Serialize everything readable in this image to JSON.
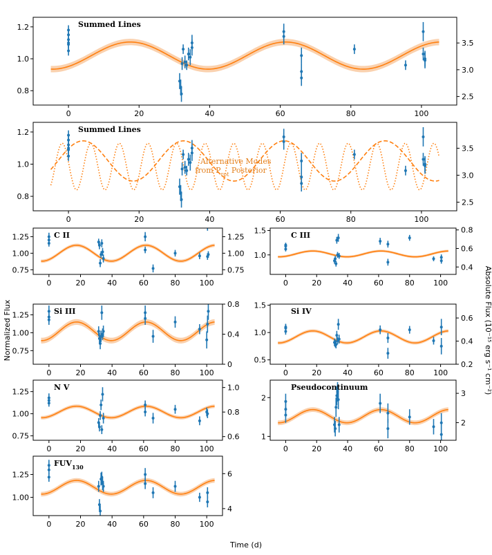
{
  "figure": {
    "xlabel": "Time (d)",
    "ylabel_left": "Normalized Flux",
    "ylabel_right": "Absolute Flux (10⁻¹⁵ erg s⁻¹ cm⁻²)",
    "colors": {
      "data": "#1f77b4",
      "model": "#ff7f0e",
      "band": "#f9c9a0",
      "annotation": "#e37f1b"
    }
  },
  "annotation": {
    "line1": "Alternative Modes",
    "line2": "from P",
    "sub": "rot",
    "line3": " Posterior"
  },
  "chart_data": [
    {
      "id": "summed",
      "type": "scatter",
      "title": "Summed Lines",
      "x": [
        0,
        0,
        0,
        0,
        0,
        0,
        31.5,
        31.8,
        32,
        32.2,
        32.5,
        33,
        33.5,
        34,
        34.5,
        35,
        35,
        61,
        61,
        66,
        66,
        66,
        81,
        95.5,
        100.5,
        100.5,
        101,
        101
      ],
      "y": [
        1.15,
        1.1,
        1.18,
        1.12,
        1.05,
        1.09,
        0.86,
        0.82,
        0.78,
        0.97,
        1.06,
        0.98,
        0.96,
        1.03,
        1.01,
        1.07,
        1.1,
        1.17,
        1.14,
        0.92,
        1.02,
        0.88,
        1.06,
        0.96,
        1.17,
        1.03,
        1.0,
        0.99
      ],
      "yerr": [
        0.03,
        0.03,
        0.03,
        0.03,
        0.03,
        0.03,
        0.05,
        0.05,
        0.05,
        0.04,
        0.03,
        0.04,
        0.03,
        0.04,
        0.05,
        0.05,
        0.05,
        0.05,
        0.05,
        0.05,
        0.05,
        0.05,
        0.03,
        0.03,
        0.06,
        0.04,
        0.05,
        0.05
      ],
      "model": {
        "mean": 1.02,
        "amp": 0.085,
        "period": 44,
        "phase": 6.5,
        "band": 0.02
      },
      "xlim": [
        -10,
        110
      ],
      "ylim": [
        0.71,
        1.26
      ],
      "xticks": [
        0,
        20,
        40,
        60,
        80,
        100
      ],
      "yticks": [
        0.8,
        1.0,
        1.2
      ],
      "yticklabels": [
        "0.8",
        "1.0",
        "1.2"
      ],
      "rticks": [
        {
          "v": 2.5,
          "label": "2.5"
        },
        {
          "v": 3.0,
          "label": "3.0"
        },
        {
          "v": 3.5,
          "label": "3.5"
        }
      ],
      "rlim": [
        2.34,
        3.98
      ]
    },
    {
      "id": "modes",
      "type": "scatter",
      "title": "Summed Lines",
      "x": [
        0,
        0,
        0,
        0,
        0,
        0,
        31.5,
        31.8,
        32,
        32.2,
        32.5,
        33,
        33.5,
        34,
        34.5,
        35,
        35,
        61,
        61,
        66,
        66,
        66,
        81,
        95.5,
        100.5,
        100.5,
        101,
        101
      ],
      "y": [
        1.15,
        1.1,
        1.18,
        1.12,
        1.05,
        1.09,
        0.86,
        0.82,
        0.78,
        0.97,
        1.06,
        0.98,
        0.96,
        1.03,
        1.01,
        1.07,
        1.1,
        1.17,
        1.14,
        0.92,
        1.02,
        0.88,
        1.06,
        0.96,
        1.17,
        1.03,
        1.0,
        0.99
      ],
      "yerr": [
        0.03,
        0.03,
        0.03,
        0.03,
        0.03,
        0.03,
        0.05,
        0.05,
        0.05,
        0.04,
        0.03,
        0.04,
        0.03,
        0.04,
        0.05,
        0.05,
        0.05,
        0.05,
        0.05,
        0.05,
        0.05,
        0.05,
        0.03,
        0.03,
        0.06,
        0.04,
        0.05,
        0.05
      ],
      "modes": [
        {
          "style": "dashed",
          "mean": 1.02,
          "amp": 0.125,
          "period": 28.5,
          "phase": -3
        },
        {
          "style": "dotted",
          "mean": 0.985,
          "amp": 0.145,
          "period": 8.1,
          "phase": -3.8
        }
      ],
      "xlim": [
        -10,
        110
      ],
      "ylim": [
        0.71,
        1.26
      ],
      "xticks": [
        0,
        20,
        40,
        60,
        80,
        100
      ],
      "yticks": [
        0.8,
        1.0,
        1.2
      ],
      "yticklabels": [
        "0.8",
        "1.0",
        "1.2"
      ],
      "rticks": [
        {
          "v": 2.5,
          "label": "2.5"
        },
        {
          "v": 3.0,
          "label": "3.0"
        },
        {
          "v": 3.5,
          "label": "3.5"
        }
      ],
      "rlim": [
        2.34,
        3.98
      ]
    },
    {
      "id": "c2",
      "type": "scatter",
      "title": "C II",
      "x": [
        0,
        0,
        0,
        31.5,
        32,
        32.5,
        33,
        33.5,
        34,
        34.5,
        61,
        61,
        66,
        80,
        95.5,
        100.5,
        100.5,
        101
      ],
      "y": [
        1.2,
        1.15,
        1.25,
        1.17,
        1.12,
        0.85,
        0.98,
        1.15,
        1.02,
        0.92,
        1.05,
        1.25,
        0.77,
        1.0,
        0.96,
        0.95,
        1.42,
        0.98
      ],
      "yerr": [
        0.05,
        0.05,
        0.06,
        0.05,
        0.06,
        0.06,
        0.05,
        0.06,
        0.06,
        0.06,
        0.05,
        0.07,
        0.06,
        0.05,
        0.05,
        0.05,
        0.08,
        0.05
      ],
      "model": {
        "mean": 1.0,
        "amp": 0.12,
        "period": 44,
        "phase": 6.5,
        "band": 0.025
      },
      "xlim": [
        -10,
        110
      ],
      "ylim": [
        0.68,
        1.38
      ],
      "xticks": [
        0,
        20,
        40,
        60,
        80,
        100
      ],
      "yticks": [
        0.75,
        1.0,
        1.25
      ],
      "yticklabels": [
        "0.75",
        "1.00",
        "1.25"
      ],
      "rticks": [
        {
          "v": 0.75,
          "label": "0.75"
        },
        {
          "v": 1.0,
          "label": "1.00"
        },
        {
          "v": 1.25,
          "label": "1.25"
        }
      ],
      "rlim": [
        0.68,
        1.38
      ]
    },
    {
      "id": "c3",
      "type": "scatter",
      "title": "C III",
      "x": [
        0,
        0,
        0,
        31.5,
        32,
        32.5,
        33,
        33.5,
        34,
        34.5,
        61,
        66,
        66,
        80,
        95.5,
        100.5,
        100.5
      ],
      "y": [
        1.2,
        1.12,
        1.18,
        0.88,
        0.92,
        0.82,
        1.3,
        1.0,
        1.35,
        0.98,
        1.28,
        1.22,
        0.85,
        1.35,
        0.92,
        0.95,
        0.88
      ],
      "yerr": [
        0.05,
        0.05,
        0.06,
        0.06,
        0.06,
        0.06,
        0.07,
        0.06,
        0.08,
        0.06,
        0.07,
        0.07,
        0.07,
        0.06,
        0.05,
        0.06,
        0.06
      ],
      "model": {
        "mean": 1.02,
        "amp": 0.06,
        "period": 44,
        "phase": 6.5,
        "band": 0.025
      },
      "xlim": [
        -10,
        110
      ],
      "ylim": [
        0.6,
        1.55
      ],
      "xticks": [
        0,
        20,
        40,
        60,
        80,
        100
      ],
      "yticks": [
        1.0,
        1.5
      ],
      "yticklabels": [
        "1.0",
        "1.5"
      ],
      "rticks": [
        {
          "v": 0.4,
          "label": "0.4"
        },
        {
          "v": 0.6,
          "label": "0.6"
        },
        {
          "v": 0.8,
          "label": "0.8"
        }
      ],
      "rlim": [
        0.32,
        0.82
      ]
    },
    {
      "id": "si3",
      "type": "scatter",
      "title": "Si III",
      "x": [
        0,
        0,
        0,
        31.5,
        32,
        32.5,
        33,
        33.5,
        34,
        34.5,
        61,
        61,
        66,
        80,
        95.5,
        100,
        100.5,
        101
      ],
      "y": [
        1.22,
        1.18,
        1.3,
        1.02,
        0.92,
        0.85,
        0.95,
        1.28,
        0.98,
        1.02,
        1.28,
        1.2,
        0.95,
        1.15,
        1.05,
        0.9,
        1.12,
        1.3
      ],
      "yerr": [
        0.07,
        0.07,
        0.08,
        0.07,
        0.08,
        0.08,
        0.08,
        0.1,
        0.08,
        0.08,
        0.1,
        0.09,
        0.09,
        0.08,
        0.07,
        0.12,
        0.12,
        0.12
      ],
      "model": {
        "mean": 1.02,
        "amp": 0.13,
        "period": 44,
        "phase": 6.5,
        "band": 0.04
      },
      "xlim": [
        -10,
        110
      ],
      "ylim": [
        0.56,
        1.4
      ],
      "xticks": [
        0,
        20,
        40,
        60,
        80,
        100
      ],
      "yticks": [
        0.75,
        1.0,
        1.25
      ],
      "yticklabels": [
        "0.75",
        "1.00",
        "1.25"
      ],
      "rticks": [
        {
          "v": 0.0,
          "label": "0"
        },
        {
          "v": 0.4,
          "label": "0.4"
        },
        {
          "v": 0.8,
          "label": "0.8"
        }
      ],
      "rlim": [
        0.0,
        0.8
      ]
    },
    {
      "id": "si4",
      "type": "scatter",
      "title": "Si IV",
      "x": [
        0,
        0,
        0,
        31.5,
        32,
        32.5,
        33,
        33.5,
        34,
        34.5,
        61,
        66,
        66,
        80,
        95.5,
        100.5,
        100.5
      ],
      "y": [
        1.1,
        1.02,
        1.08,
        0.82,
        0.8,
        0.78,
        0.95,
        0.85,
        1.15,
        0.88,
        1.05,
        0.62,
        0.9,
        1.05,
        0.85,
        0.75,
        1.1
      ],
      "yerr": [
        0.06,
        0.06,
        0.07,
        0.07,
        0.07,
        0.07,
        0.08,
        0.07,
        0.1,
        0.08,
        0.08,
        0.1,
        0.09,
        0.07,
        0.07,
        0.15,
        0.15
      ],
      "model": {
        "mean": 0.92,
        "amp": 0.11,
        "period": 44,
        "phase": 6.5,
        "band": 0.03
      },
      "xlim": [
        -10,
        110
      ],
      "ylim": [
        0.42,
        1.52
      ],
      "xticks": [
        0,
        20,
        40,
        60,
        80,
        100
      ],
      "yticks": [
        0.5,
        1.0,
        1.5
      ],
      "yticklabels": [
        "0.5",
        "1.0",
        "1.5"
      ],
      "rticks": [
        {
          "v": 0.2,
          "label": "0.2"
        },
        {
          "v": 0.4,
          "label": "0.4"
        },
        {
          "v": 0.6,
          "label": "0.6"
        }
      ],
      "rlim": [
        0.2,
        0.72
      ]
    },
    {
      "id": "n5",
      "type": "scatter",
      "title": "N V",
      "x": [
        0,
        0,
        0,
        31.5,
        32,
        32.5,
        33,
        33.5,
        34,
        34.5,
        61,
        61,
        66,
        80,
        95.5,
        100,
        100.5
      ],
      "y": [
        1.15,
        1.12,
        1.18,
        0.9,
        0.85,
        0.98,
        1.1,
        0.82,
        1.22,
        0.95,
        1.1,
        1.02,
        0.95,
        1.05,
        0.92,
        1.02,
        1.0
      ],
      "yerr": [
        0.04,
        0.04,
        0.05,
        0.05,
        0.05,
        0.05,
        0.06,
        0.05,
        0.08,
        0.06,
        0.05,
        0.05,
        0.06,
        0.05,
        0.05,
        0.05,
        0.05
      ],
      "model": {
        "mean": 1.02,
        "amp": 0.065,
        "period": 44,
        "phase": 6.5,
        "band": 0.02
      },
      "xlim": [
        -10,
        110
      ],
      "ylim": [
        0.7,
        1.38
      ],
      "xticks": [
        0,
        20,
        40,
        60,
        80,
        100
      ],
      "yticks": [
        0.75,
        1.0,
        1.25
      ],
      "yticklabels": [
        "0.75",
        "1.00",
        "1.25"
      ],
      "rticks": [
        {
          "v": 0.6,
          "label": "0.6"
        },
        {
          "v": 0.8,
          "label": "0.8"
        },
        {
          "v": 1.0,
          "label": "1.0"
        }
      ],
      "rlim": [
        0.57,
        1.06
      ]
    },
    {
      "id": "pseudo",
      "type": "scatter",
      "title": "Pseudocontinuum",
      "x": [
        0,
        0,
        0,
        31.5,
        32,
        32.5,
        33,
        33.5,
        34,
        34.5,
        61,
        66,
        66,
        80,
        95.5,
        100.5,
        100.5
      ],
      "y": [
        1.7,
        1.9,
        1.55,
        1.3,
        1.2,
        1.75,
        2.05,
        2.15,
        1.95,
        1.3,
        1.85,
        1.6,
        1.2,
        1.5,
        1.25,
        1.05,
        1.35
      ],
      "yerr": [
        0.2,
        0.2,
        0.2,
        0.2,
        0.2,
        0.25,
        0.25,
        0.25,
        0.25,
        0.2,
        0.25,
        0.25,
        0.25,
        0.2,
        0.2,
        0.25,
        0.25
      ],
      "model": {
        "mean": 1.52,
        "amp": 0.17,
        "period": 44,
        "phase": 6.5,
        "band": 0.06
      },
      "xlim": [
        -10,
        110
      ],
      "ylim": [
        0.9,
        2.45
      ],
      "xticks": [
        0,
        20,
        40,
        60,
        80,
        100
      ],
      "yticks": [
        1,
        2
      ],
      "yticklabels": [
        "1",
        "2"
      ],
      "rticks": [
        {
          "v": 2,
          "label": "2"
        },
        {
          "v": 3,
          "label": "3"
        }
      ],
      "rlim": [
        1.4,
        3.45
      ]
    },
    {
      "id": "fuv",
      "type": "scatter",
      "title": "FUV",
      "title_sub": "130",
      "x": [
        0,
        0,
        0,
        31.5,
        32,
        32.5,
        33,
        33.5,
        34,
        34.5,
        61,
        61,
        66,
        80,
        95.5,
        100.5,
        100.5
      ],
      "y": [
        1.3,
        1.22,
        1.35,
        1.12,
        0.92,
        0.85,
        1.2,
        1.22,
        1.15,
        1.12,
        1.25,
        1.15,
        1.05,
        1.12,
        1.0,
        1.05,
        0.95
      ],
      "yerr": [
        0.05,
        0.05,
        0.06,
        0.06,
        0.06,
        0.06,
        0.07,
        0.06,
        0.07,
        0.06,
        0.07,
        0.06,
        0.06,
        0.06,
        0.05,
        0.06,
        0.06
      ],
      "model": {
        "mean": 1.11,
        "amp": 0.075,
        "period": 44,
        "phase": 6.5,
        "band": 0.025
      },
      "xlim": [
        -10,
        110
      ],
      "ylim": [
        0.8,
        1.45
      ],
      "xticks": [
        0,
        20,
        40,
        60,
        80,
        100
      ],
      "yticks": [
        1.0,
        1.25
      ],
      "yticklabels": [
        "1.00",
        "1.25"
      ],
      "rticks": [
        {
          "v": 4,
          "label": "4"
        },
        {
          "v": 6,
          "label": "6"
        }
      ],
      "rlim": [
        3.6,
        7.0
      ]
    }
  ]
}
